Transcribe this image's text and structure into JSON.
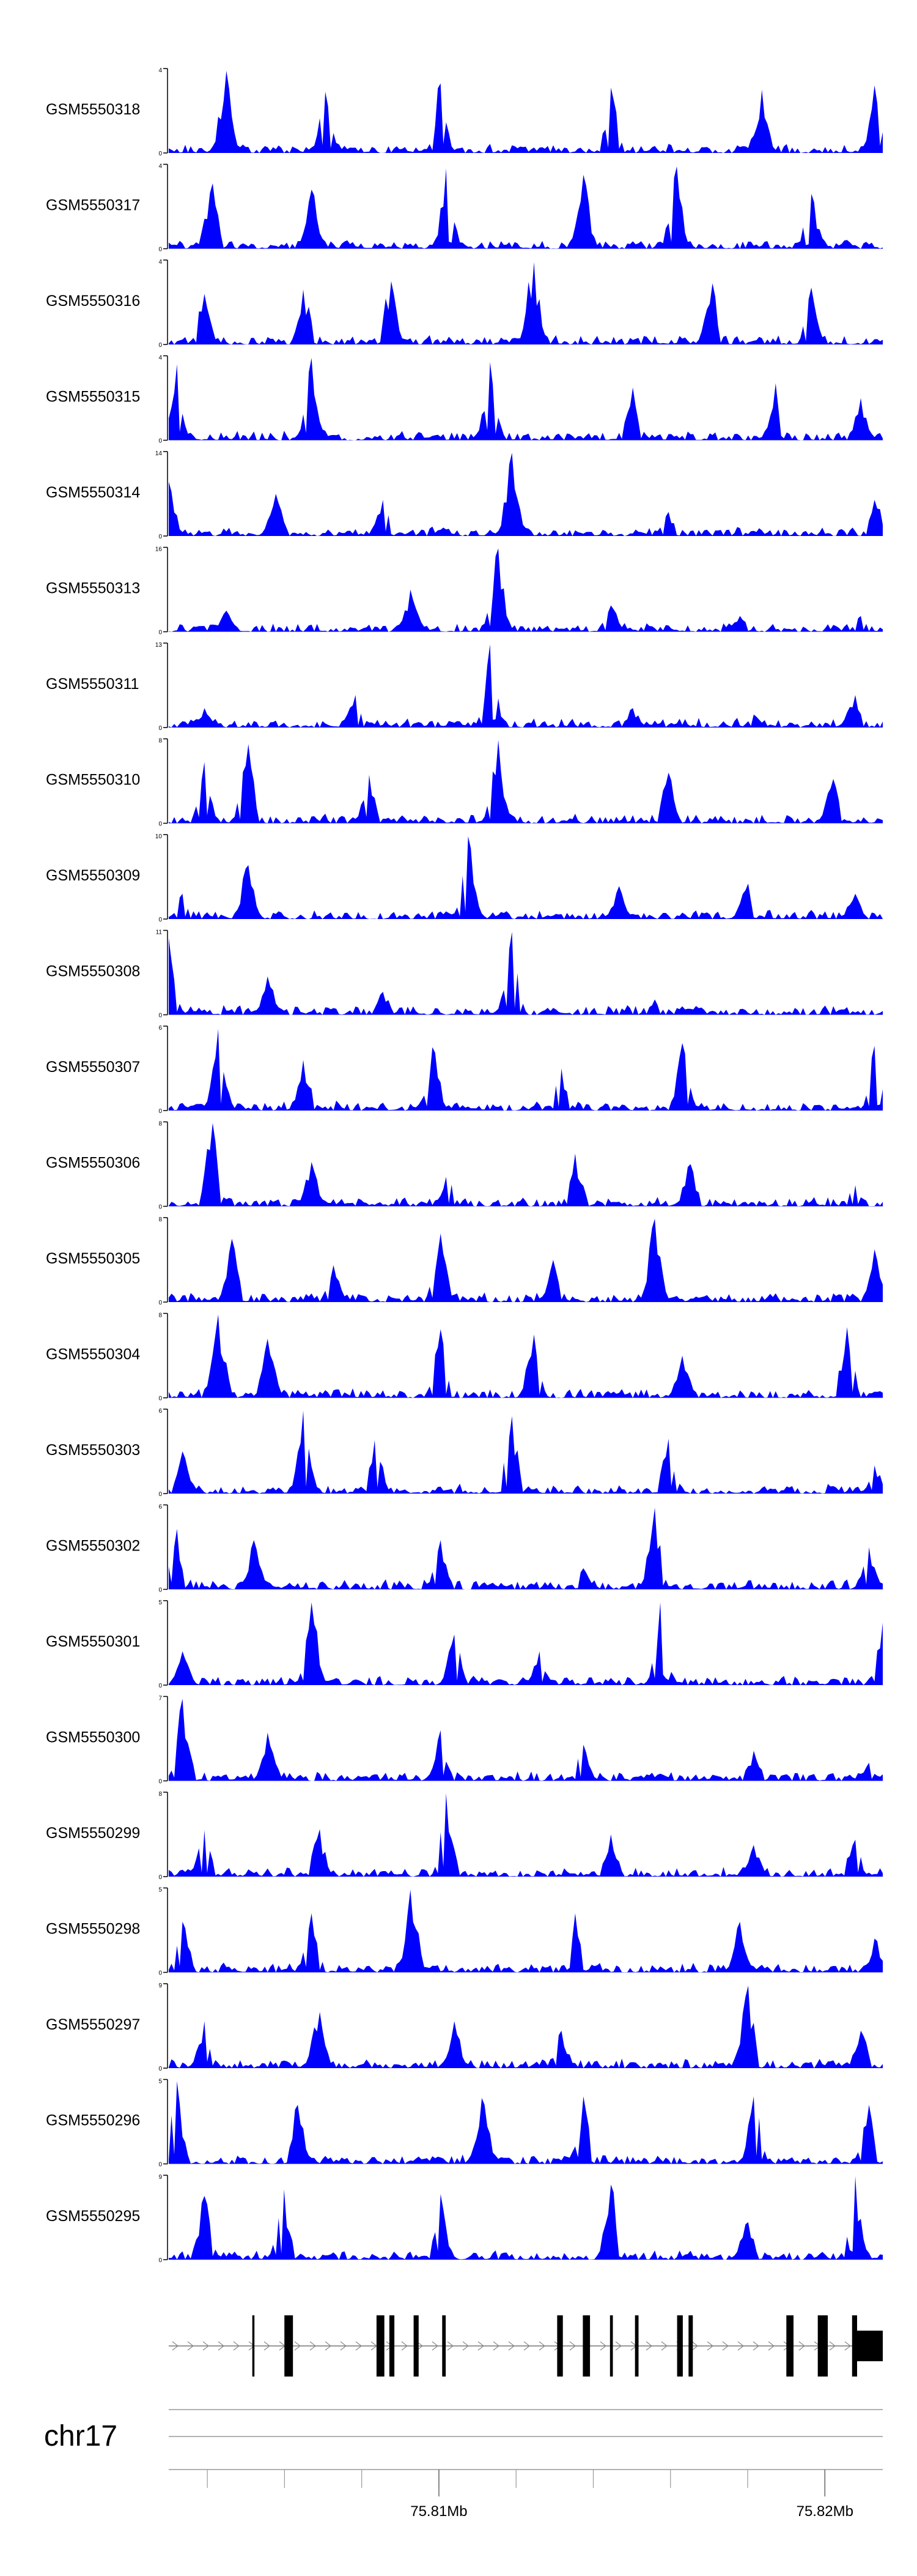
{
  "chart_data": {
    "type": "area",
    "genomic_range": [
      75.803,
      75.8215
    ],
    "x_axis": {
      "ticks": [
        75.81,
        75.82
      ],
      "tick_labels": [
        "75.81Mb",
        "75.82Mb"
      ],
      "chromosome": "chr17"
    },
    "colors": {
      "signal": "#0000ff",
      "gene": "#000000",
      "axis": "#000000"
    },
    "series": [
      {
        "name": "GSM5550318",
        "ymax": 4,
        "y_ticks": [
          "0",
          "4"
        ],
        "peaks": [
          [
            0.08,
            3.9
          ],
          [
            0.22,
            2.9
          ],
          [
            0.38,
            3.3
          ],
          [
            0.62,
            3.1
          ],
          [
            0.83,
            3.0
          ],
          [
            0.99,
            3.2
          ]
        ]
      },
      {
        "name": "GSM5550317",
        "ymax": 4,
        "y_ticks": [
          "0",
          "4"
        ],
        "peaks": [
          [
            0.06,
            3.1
          ],
          [
            0.2,
            2.8
          ],
          [
            0.39,
            3.8
          ],
          [
            0.58,
            3.5
          ],
          [
            0.71,
            3.9
          ],
          [
            0.9,
            2.6
          ]
        ]
      },
      {
        "name": "GSM5550316",
        "ymax": 4,
        "y_ticks": [
          "0",
          "4"
        ],
        "peaks": [
          [
            0.05,
            2.4
          ],
          [
            0.19,
            2.6
          ],
          [
            0.31,
            3.0
          ],
          [
            0.51,
            3.9
          ],
          [
            0.76,
            2.9
          ],
          [
            0.9,
            2.7
          ]
        ]
      },
      {
        "name": "GSM5550315",
        "ymax": 4,
        "y_ticks": [
          "0",
          "4"
        ],
        "peaks": [
          [
            0.01,
            3.6
          ],
          [
            0.2,
            3.9
          ],
          [
            0.45,
            3.7
          ],
          [
            0.65,
            2.5
          ],
          [
            0.85,
            2.7
          ],
          [
            0.97,
            2.0
          ]
        ]
      },
      {
        "name": "GSM5550314",
        "ymax": 14,
        "y_ticks": [
          "0",
          "14"
        ],
        "peaks": [
          [
            0.0,
            9.0
          ],
          [
            0.15,
            7.0
          ],
          [
            0.3,
            6.0
          ],
          [
            0.48,
            13.8
          ],
          [
            0.7,
            4.0
          ],
          [
            0.99,
            6.0
          ]
        ]
      },
      {
        "name": "GSM5550313",
        "ymax": 16,
        "y_ticks": [
          "0",
          "16"
        ],
        "peaks": [
          [
            0.08,
            4.0
          ],
          [
            0.34,
            8.0
          ],
          [
            0.46,
            15.8
          ],
          [
            0.62,
            5.0
          ],
          [
            0.8,
            3.0
          ],
          [
            0.97,
            3.0
          ]
        ]
      },
      {
        "name": "GSM5550311",
        "ymax": 13,
        "y_ticks": [
          "0",
          "13"
        ],
        "peaks": [
          [
            0.05,
            3.0
          ],
          [
            0.26,
            5.0
          ],
          [
            0.45,
            12.8
          ],
          [
            0.65,
            3.0
          ],
          [
            0.82,
            2.0
          ],
          [
            0.96,
            5.0
          ]
        ]
      },
      {
        "name": "GSM5550310",
        "ymax": 8,
        "y_ticks": [
          "0",
          "8"
        ],
        "peaks": [
          [
            0.05,
            5.8
          ],
          [
            0.11,
            7.5
          ],
          [
            0.28,
            4.6
          ],
          [
            0.46,
            7.9
          ],
          [
            0.7,
            4.8
          ],
          [
            0.93,
            4.2
          ]
        ]
      },
      {
        "name": "GSM5550309",
        "ymax": 10,
        "y_ticks": [
          "0",
          "10"
        ],
        "peaks": [
          [
            0.02,
            3.0
          ],
          [
            0.11,
            6.4
          ],
          [
            0.42,
            9.8
          ],
          [
            0.63,
            3.9
          ],
          [
            0.81,
            4.2
          ],
          [
            0.96,
            3.0
          ]
        ]
      },
      {
        "name": "GSM5550308",
        "ymax": 11,
        "y_ticks": [
          "0",
          "11"
        ],
        "peaks": [
          [
            0.0,
            10.0
          ],
          [
            0.14,
            5.0
          ],
          [
            0.3,
            3.0
          ],
          [
            0.48,
            10.8
          ],
          [
            0.68,
            2.0
          ],
          [
            0.95,
            1.0
          ]
        ]
      },
      {
        "name": "GSM5550307",
        "ymax": 6,
        "y_ticks": [
          "0",
          "6"
        ],
        "peaks": [
          [
            0.07,
            5.8
          ],
          [
            0.19,
            3.6
          ],
          [
            0.37,
            4.5
          ],
          [
            0.55,
            3.0
          ],
          [
            0.72,
            4.8
          ],
          [
            0.99,
            4.6
          ]
        ]
      },
      {
        "name": "GSM5550306",
        "ymax": 8,
        "y_ticks": [
          "0",
          "8"
        ],
        "peaks": [
          [
            0.06,
            7.9
          ],
          [
            0.2,
            4.2
          ],
          [
            0.39,
            2.8
          ],
          [
            0.57,
            5.0
          ],
          [
            0.73,
            4.0
          ],
          [
            0.96,
            2.0
          ]
        ]
      },
      {
        "name": "GSM5550305",
        "ymax": 8,
        "y_ticks": [
          "0",
          "8"
        ],
        "peaks": [
          [
            0.09,
            6.0
          ],
          [
            0.23,
            3.5
          ],
          [
            0.38,
            6.5
          ],
          [
            0.54,
            4.0
          ],
          [
            0.68,
            7.9
          ],
          [
            0.99,
            5.0
          ]
        ]
      },
      {
        "name": "GSM5550304",
        "ymax": 8,
        "y_ticks": [
          "0",
          "8"
        ],
        "peaks": [
          [
            0.07,
            7.9
          ],
          [
            0.14,
            5.6
          ],
          [
            0.38,
            6.5
          ],
          [
            0.51,
            6.0
          ],
          [
            0.72,
            4.0
          ],
          [
            0.95,
            6.7
          ]
        ]
      },
      {
        "name": "GSM5550303",
        "ymax": 6,
        "y_ticks": [
          "0",
          "6"
        ],
        "peaks": [
          [
            0.02,
            3.0
          ],
          [
            0.19,
            5.9
          ],
          [
            0.29,
            3.8
          ],
          [
            0.48,
            5.5
          ],
          [
            0.7,
            3.9
          ],
          [
            0.99,
            2.0
          ]
        ]
      },
      {
        "name": "GSM5550302",
        "ymax": 6,
        "y_ticks": [
          "0",
          "6"
        ],
        "peaks": [
          [
            0.01,
            4.3
          ],
          [
            0.12,
            3.5
          ],
          [
            0.38,
            3.5
          ],
          [
            0.58,
            1.5
          ],
          [
            0.68,
            5.8
          ],
          [
            0.98,
            3.0
          ]
        ]
      },
      {
        "name": "GSM5550301",
        "ymax": 5,
        "y_ticks": [
          "0",
          "5"
        ],
        "peaks": [
          [
            0.02,
            2.0
          ],
          [
            0.2,
            4.9
          ],
          [
            0.4,
            3.0
          ],
          [
            0.52,
            2.0
          ],
          [
            0.69,
            4.9
          ],
          [
            1.0,
            3.7
          ]
        ]
      },
      {
        "name": "GSM5550300",
        "ymax": 7,
        "y_ticks": [
          "0",
          "7"
        ],
        "peaks": [
          [
            0.02,
            6.8
          ],
          [
            0.14,
            4.0
          ],
          [
            0.38,
            4.2
          ],
          [
            0.58,
            3.0
          ],
          [
            0.82,
            2.5
          ],
          [
            0.98,
            1.5
          ]
        ]
      },
      {
        "name": "GSM5550299",
        "ymax": 8,
        "y_ticks": [
          "0",
          "8"
        ],
        "peaks": [
          [
            0.05,
            4.4
          ],
          [
            0.21,
            4.5
          ],
          [
            0.39,
            7.9
          ],
          [
            0.62,
            4.0
          ],
          [
            0.82,
            3.0
          ],
          [
            0.96,
            3.5
          ]
        ]
      },
      {
        "name": "GSM5550298",
        "ymax": 5,
        "y_ticks": [
          "0",
          "5"
        ],
        "peaks": [
          [
            0.02,
            3.0
          ],
          [
            0.2,
            3.5
          ],
          [
            0.34,
            4.9
          ],
          [
            0.57,
            3.5
          ],
          [
            0.8,
            3.0
          ],
          [
            0.99,
            2.0
          ]
        ]
      },
      {
        "name": "GSM5550297",
        "ymax": 9,
        "y_ticks": [
          "0",
          "9"
        ],
        "peaks": [
          [
            0.05,
            5.0
          ],
          [
            0.21,
            6.0
          ],
          [
            0.4,
            5.0
          ],
          [
            0.55,
            4.0
          ],
          [
            0.81,
            8.8
          ],
          [
            0.97,
            4.0
          ]
        ]
      },
      {
        "name": "GSM5550296",
        "ymax": 5,
        "y_ticks": [
          "0",
          "5"
        ],
        "peaks": [
          [
            0.01,
            4.9
          ],
          [
            0.18,
            3.5
          ],
          [
            0.44,
            3.9
          ],
          [
            0.58,
            4.0
          ],
          [
            0.82,
            4.0
          ],
          [
            0.98,
            3.5
          ]
        ]
      },
      {
        "name": "GSM5550295",
        "ymax": 9,
        "y_ticks": [
          "0",
          "9"
        ],
        "peaks": [
          [
            0.05,
            6.8
          ],
          [
            0.16,
            7.5
          ],
          [
            0.38,
            7.0
          ],
          [
            0.62,
            8.0
          ],
          [
            0.81,
            4.0
          ],
          [
            0.96,
            8.9
          ]
        ]
      }
    ],
    "gene_model": {
      "strand": "+",
      "exons": [
        [
          0.117,
          0.12
        ],
        [
          0.162,
          0.174
        ],
        [
          0.291,
          0.302
        ],
        [
          0.309,
          0.316
        ],
        [
          0.343,
          0.35
        ],
        [
          0.383,
          0.388
        ],
        [
          0.544,
          0.552
        ],
        [
          0.58,
          0.59
        ],
        [
          0.618,
          0.622
        ],
        [
          0.653,
          0.658
        ],
        [
          0.712,
          0.72
        ],
        [
          0.728,
          0.734
        ],
        [
          0.865,
          0.875
        ],
        [
          0.909,
          0.923
        ],
        [
          0.957,
          0.964
        ],
        [
          0.964,
          1.0
        ]
      ]
    }
  }
}
